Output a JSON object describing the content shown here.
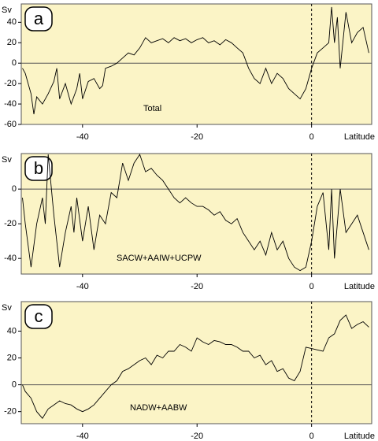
{
  "chart_data": [
    {
      "type": "line",
      "panel": "a",
      "y_label": "Sv",
      "x_label": "Latitude",
      "annotation": "Total",
      "xlim": [
        -50.7,
        10.5
      ],
      "xticks": [
        -40,
        -20,
        0
      ],
      "ylim": [
        -60,
        58
      ],
      "yticks": [
        40,
        20,
        0,
        -20,
        -40,
        -60
      ],
      "series": [
        {
          "name": "Total",
          "color": "#000000",
          "x": [
            -50.5,
            -50,
            -49,
            -48.5,
            -48,
            -47,
            -46,
            -45,
            -44.5,
            -44,
            -43,
            -42,
            -41,
            -40.5,
            -40,
            -39,
            -38,
            -37,
            -36.5,
            -36,
            -35,
            -34,
            -33,
            -32,
            -31,
            -30,
            -29,
            -28,
            -27,
            -26,
            -25,
            -24,
            -23,
            -22,
            -21,
            -20,
            -19,
            -18,
            -17,
            -16,
            -15,
            -14,
            -13,
            -12,
            -11,
            -10,
            -9,
            -8,
            -7,
            -6,
            -5,
            -4,
            -3,
            -2,
            -1,
            0,
            1,
            2,
            3,
            3.5,
            4,
            4.5,
            5,
            6,
            7,
            8,
            9,
            10
          ],
          "values": [
            -5,
            -10,
            -30,
            -50,
            -33,
            -40,
            -30,
            -18,
            -5,
            -35,
            -20,
            -40,
            -25,
            -10,
            -35,
            -18,
            -15,
            -25,
            -22,
            -5,
            -3,
            0,
            5,
            10,
            8,
            15,
            25,
            20,
            22,
            24,
            20,
            25,
            22,
            24,
            20,
            23,
            25,
            20,
            22,
            18,
            23,
            20,
            15,
            10,
            -5,
            -15,
            -20,
            -5,
            -20,
            -10,
            -15,
            -25,
            -30,
            -35,
            -25,
            -5,
            10,
            15,
            20,
            55,
            20,
            45,
            -5,
            50,
            20,
            30,
            35,
            10
          ]
        }
      ]
    },
    {
      "type": "line",
      "panel": "b",
      "y_label": "Sv",
      "x_label": "Latitude",
      "annotation": "SACW+AAIW+UCPW",
      "xlim": [
        -50.7,
        10.5
      ],
      "xticks": [
        -40,
        -20,
        0
      ],
      "ylim": [
        -49,
        20.5
      ],
      "yticks": [
        0,
        -20,
        -40
      ],
      "series": [
        {
          "name": "SACW+AAIW+UCPW",
          "color": "#000000",
          "x": [
            -50.5,
            -50,
            -49,
            -48,
            -47,
            -46.5,
            -46,
            -45,
            -44,
            -43,
            -42,
            -41.5,
            -41,
            -40,
            -39,
            -38,
            -37,
            -36,
            -35,
            -34,
            -33,
            -32,
            -31,
            -30,
            -29,
            -28,
            -27,
            -26,
            -25,
            -24,
            -23,
            -22,
            -21,
            -20,
            -19,
            -18,
            -17,
            -16,
            -15,
            -14,
            -13,
            -12,
            -11,
            -10,
            -9,
            -8,
            -7,
            -6,
            -5,
            -4,
            -3,
            -2,
            -1,
            0,
            1,
            2,
            3,
            3.5,
            4,
            5,
            6,
            7,
            8,
            9,
            10
          ],
          "values": [
            -5,
            -20,
            -45,
            -20,
            -5,
            -20,
            20,
            -15,
            -45,
            -25,
            -10,
            -25,
            -5,
            -30,
            -10,
            -35,
            -15,
            -20,
            -2,
            -5,
            15,
            5,
            15,
            20,
            10,
            12,
            8,
            5,
            0,
            -5,
            -8,
            -5,
            -8,
            -10,
            -10,
            -12,
            -15,
            -13,
            -18,
            -20,
            -17,
            -25,
            -30,
            -35,
            -30,
            -38,
            -25,
            -35,
            -30,
            -40,
            -45,
            -47,
            -45,
            -30,
            -10,
            -2,
            -35,
            0,
            -40,
            0,
            -25,
            -20,
            -15,
            -25,
            -35
          ]
        }
      ]
    },
    {
      "type": "line",
      "panel": "c",
      "y_label": "Sv",
      "x_label": "Latitude",
      "annotation": "NADW+AABW",
      "xlim": [
        -50.7,
        10.5
      ],
      "xticks": [
        -40,
        -20,
        0
      ],
      "ylim": [
        -29,
        62
      ],
      "yticks": [
        40,
        20,
        0,
        -20
      ],
      "series": [
        {
          "name": "NADW+AABW",
          "color": "#000000",
          "x": [
            -50.5,
            -50,
            -49,
            -48,
            -47,
            -46,
            -45,
            -44,
            -43,
            -42,
            -41,
            -40,
            -39,
            -38,
            -37,
            -36,
            -35,
            -34,
            -33,
            -32,
            -31,
            -30,
            -29,
            -28,
            -27,
            -26,
            -25,
            -24,
            -23,
            -22,
            -21,
            -20,
            -19,
            -18,
            -17,
            -16,
            -15,
            -14,
            -13,
            -12,
            -11,
            -10,
            -9,
            -8,
            -7,
            -6,
            -5,
            -4,
            -3,
            -2,
            -1,
            0,
            1,
            2,
            3,
            4,
            5,
            6,
            7,
            8,
            9,
            10
          ],
          "values": [
            0,
            -5,
            -10,
            -20,
            -25,
            -18,
            -15,
            -12,
            -14,
            -15,
            -18,
            -20,
            -18,
            -15,
            -10,
            -5,
            0,
            3,
            10,
            12,
            15,
            18,
            20,
            15,
            22,
            20,
            25,
            25,
            30,
            28,
            25,
            35,
            32,
            30,
            33,
            32,
            30,
            30,
            28,
            25,
            25,
            20,
            22,
            15,
            18,
            10,
            12,
            5,
            3,
            10,
            28,
            27,
            26,
            25,
            35,
            38,
            48,
            52,
            42,
            45,
            47,
            43
          ]
        }
      ]
    }
  ]
}
